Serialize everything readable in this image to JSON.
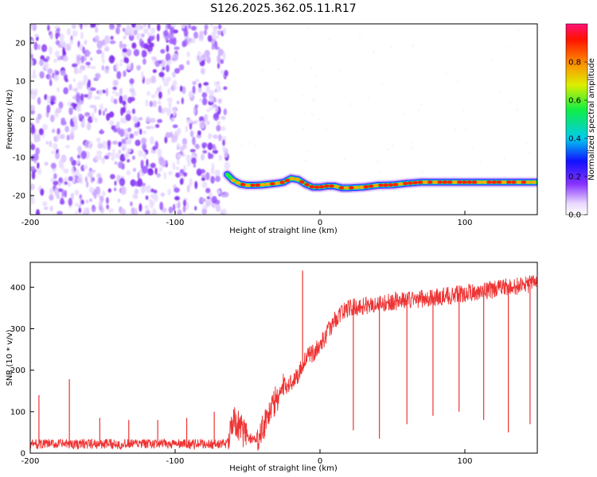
{
  "title": "S126.2025.362.05.11.R17",
  "chart_data": [
    {
      "type": "heatmap",
      "name": "spectrogram",
      "xlabel": "Height of straight line (km)",
      "ylabel": "Frequency (Hz)",
      "xlim": [
        -200,
        150
      ],
      "ylim": [
        -25,
        25
      ],
      "xticks": [
        -200,
        -100,
        0,
        100
      ],
      "yticks": [
        -20,
        -10,
        0,
        10,
        20
      ],
      "noise_region_x": [
        -200,
        -64
      ],
      "signal_trace": {
        "x": [
          -64,
          -60,
          -55,
          -50,
          -45,
          -40,
          -35,
          -30,
          -25,
          -20,
          -15,
          -10,
          -5,
          0,
          5,
          10,
          15,
          20,
          30,
          40,
          50,
          60,
          70,
          80,
          90,
          100,
          110,
          120,
          130,
          140,
          150
        ],
        "freq": [
          -14.5,
          -16.0,
          -17.0,
          -17.3,
          -17.3,
          -17.2,
          -17.0,
          -16.8,
          -16.5,
          -15.5,
          -15.8,
          -17.0,
          -17.8,
          -17.8,
          -17.5,
          -17.5,
          -18.0,
          -18.0,
          -17.8,
          -17.3,
          -17.2,
          -16.8,
          -16.5,
          -16.5,
          -16.5,
          -16.5,
          -16.5,
          -16.5,
          -16.5,
          -16.5,
          -16.5
        ]
      },
      "colorbar": {
        "label": "Normalized spectral amplitude",
        "range": [
          0,
          1
        ],
        "ticks": [
          0.0,
          0.2,
          0.4,
          0.6,
          0.8
        ]
      }
    },
    {
      "type": "line",
      "name": "snr",
      "xlabel": "Height of straight line (km)",
      "ylabel": "SNR (10 * v/v)",
      "xlim": [
        -200,
        150
      ],
      "ylim": [
        0,
        460
      ],
      "xticks": [
        -200,
        -100,
        0,
        100
      ],
      "yticks": [
        0,
        100,
        200,
        300,
        400
      ],
      "color": "#ee3333",
      "trend": {
        "x": [
          -200,
          -100,
          -65,
          -60,
          -55,
          -50,
          -45,
          -40,
          -35,
          -30,
          -25,
          -20,
          -15,
          -10,
          -5,
          0,
          5,
          10,
          15,
          20,
          30,
          40,
          50,
          60,
          70,
          80,
          90,
          100,
          110,
          120,
          130,
          140,
          150
        ],
        "y": [
          22,
          22,
          22,
          80,
          60,
          40,
          30,
          60,
          100,
          130,
          160,
          170,
          190,
          230,
          240,
          260,
          290,
          320,
          340,
          350,
          355,
          360,
          365,
          370,
          372,
          375,
          380,
          385,
          390,
          395,
          400,
          405,
          410
        ]
      },
      "spikes": [
        {
          "x": -194,
          "y": 140
        },
        {
          "x": -173,
          "y": 178
        },
        {
          "x": -152,
          "y": 85
        },
        {
          "x": -132,
          "y": 80
        },
        {
          "x": -112,
          "y": 80
        },
        {
          "x": -92,
          "y": 85
        },
        {
          "x": -73,
          "y": 100
        },
        {
          "x": -12,
          "y": 440
        },
        {
          "x": 23,
          "y": 55
        },
        {
          "x": 41,
          "y": 35
        },
        {
          "x": 60,
          "y": 70
        },
        {
          "x": 78,
          "y": 90
        },
        {
          "x": 96,
          "y": 100
        },
        {
          "x": 113,
          "y": 80
        },
        {
          "x": 130,
          "y": 50
        },
        {
          "x": 145,
          "y": 70
        }
      ]
    }
  ]
}
